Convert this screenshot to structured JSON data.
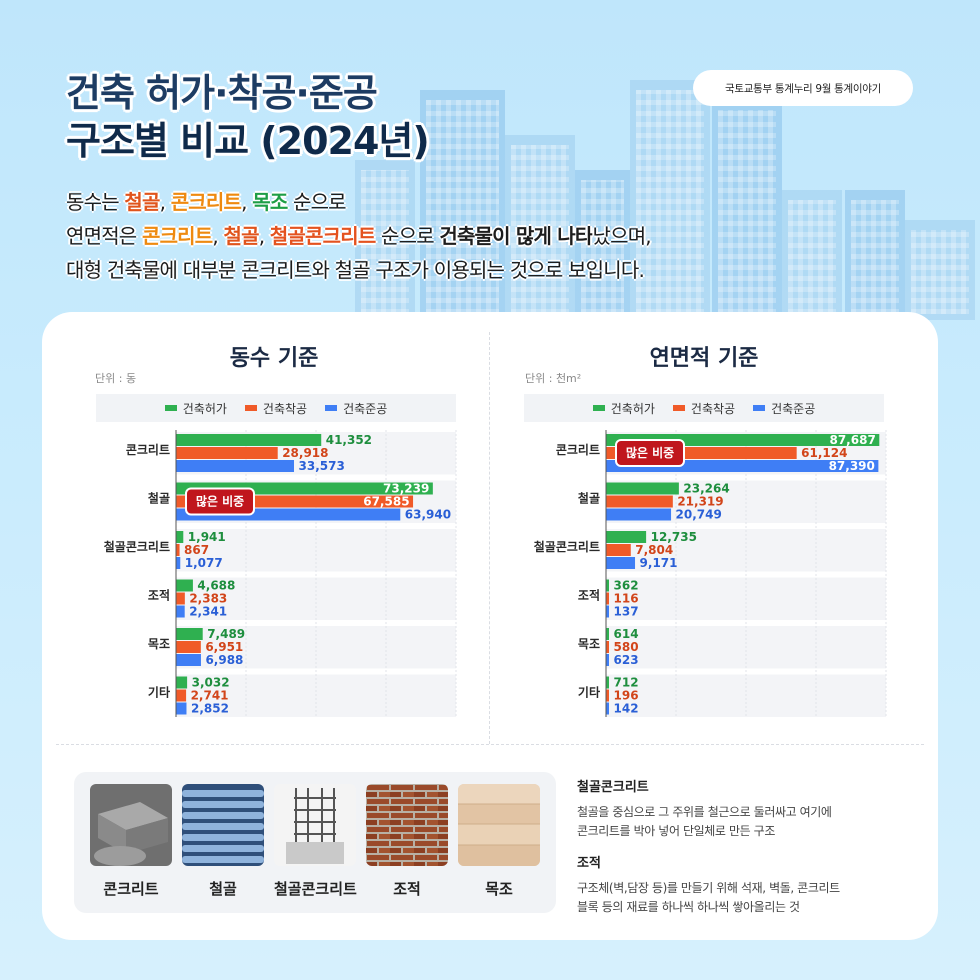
{
  "source": "국토교통부 통계누리 9월 통계이야기",
  "title_line1": "건축 허가·착공·준공",
  "title_line2": "구조별 비교 (2024년)",
  "summary": {
    "line1": {
      "p1": "동수는 ",
      "steel": "철골",
      "c1": ", ",
      "conc": "콘크리트",
      "c2": ", ",
      "wood": "목조",
      "end": " 순으로"
    },
    "line2": {
      "p1": "연면적은 ",
      "conc": "콘크리트",
      "c1": ", ",
      "steel": "철골",
      "c2": ", ",
      "src": "철골콘크리트",
      "p2": " 순으로 ",
      "b": "건축물이 많게 나타",
      "end": "났으며,"
    },
    "line3": "대형 건축물에 대부분 콘크리트와 철골 구조가 이용되는 것으로 보입니다."
  },
  "colors": {
    "permit": "#2fb050",
    "start": "#f05a28",
    "complete": "#3f7ef5",
    "permit_text": "#1e8e3e",
    "start_text": "#d2451a",
    "complete_text": "#2a5fd6",
    "callout": "#c0161d"
  },
  "legend": [
    "건축허가",
    "건축착공",
    "건축준공"
  ],
  "callout_label": "많은 비중",
  "chart_data": [
    {
      "type": "bar",
      "orientation": "horizontal",
      "title": "동수 기준",
      "unit": "단위 : 동",
      "categories": [
        "콘크리트",
        "철골",
        "철골콘크리트",
        "조적",
        "목조",
        "기타"
      ],
      "series": [
        {
          "name": "건축허가",
          "values": [
            41352,
            73239,
            1941,
            4688,
            7489,
            3032
          ]
        },
        {
          "name": "건축착공",
          "values": [
            28918,
            67585,
            867,
            2383,
            6951,
            2741
          ]
        },
        {
          "name": "건축준공",
          "values": [
            33573,
            63940,
            1077,
            2341,
            6988,
            2852
          ]
        }
      ],
      "xlim": [
        0,
        80000
      ],
      "callout_category": "철골"
    },
    {
      "type": "bar",
      "orientation": "horizontal",
      "title": "연면적 기준",
      "unit": "단위 : 천m²",
      "categories": [
        "콘크리트",
        "철골",
        "철골콘크리트",
        "조적",
        "목조",
        "기타"
      ],
      "series": [
        {
          "name": "건축허가",
          "values": [
            87687,
            23264,
            12735,
            362,
            614,
            712
          ]
        },
        {
          "name": "건축착공",
          "values": [
            61124,
            21319,
            7804,
            116,
            580,
            196
          ]
        },
        {
          "name": "건축준공",
          "values": [
            87390,
            20749,
            9171,
            137,
            623,
            142
          ]
        }
      ],
      "xlim": [
        0,
        90000
      ],
      "callout_category": "콘크리트"
    }
  ],
  "materials": [
    "콘크리트",
    "철골",
    "철골콘크리트",
    "조적",
    "목조"
  ],
  "definitions": [
    {
      "term": "철골콘크리트",
      "desc_line1": "철골을 중심으로 그 주위를 철근으로 둘러싸고 여기에",
      "desc_line2": "콘크리트를 박아 넣어 단일체로 만든 구조"
    },
    {
      "term": "조적",
      "desc_line1": "구조체(벽,담장 등)를 만들기 위해 석재, 벽돌, 콘크리트",
      "desc_line2": "블록 등의 재료를 하나씩 하나씩 쌓아올리는 것"
    }
  ]
}
